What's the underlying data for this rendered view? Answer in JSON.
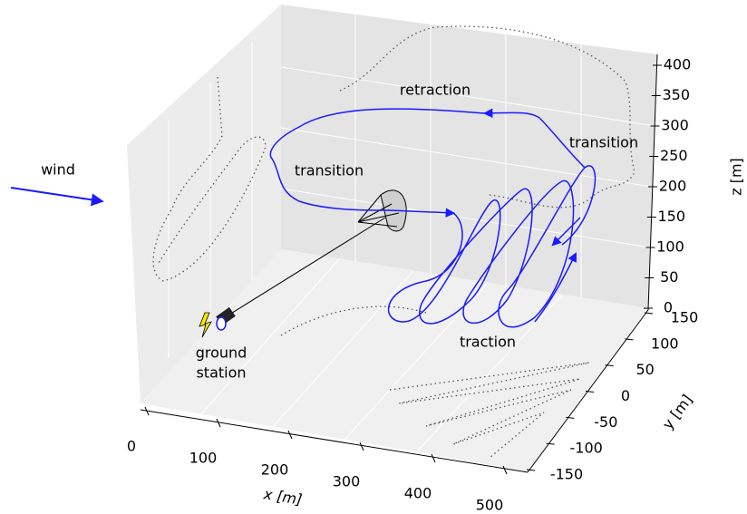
{
  "wind": "wind",
  "labels": {
    "retraction": "retraction",
    "transition_left": "transition",
    "transition_right": "transition",
    "traction": "traction",
    "ground_station": [
      "ground",
      "station"
    ]
  },
  "axes": {
    "x": {
      "label": "x [m]",
      "ticks": [
        0,
        100,
        200,
        300,
        400,
        500
      ]
    },
    "y": {
      "label": "y [m]",
      "ticks": [
        150,
        100,
        50,
        0,
        -50,
        -100,
        -150
      ]
    },
    "z": {
      "label": "z [m]",
      "ticks": [
        0,
        50,
        100,
        150,
        200,
        250,
        300,
        350,
        400
      ]
    }
  }
}
